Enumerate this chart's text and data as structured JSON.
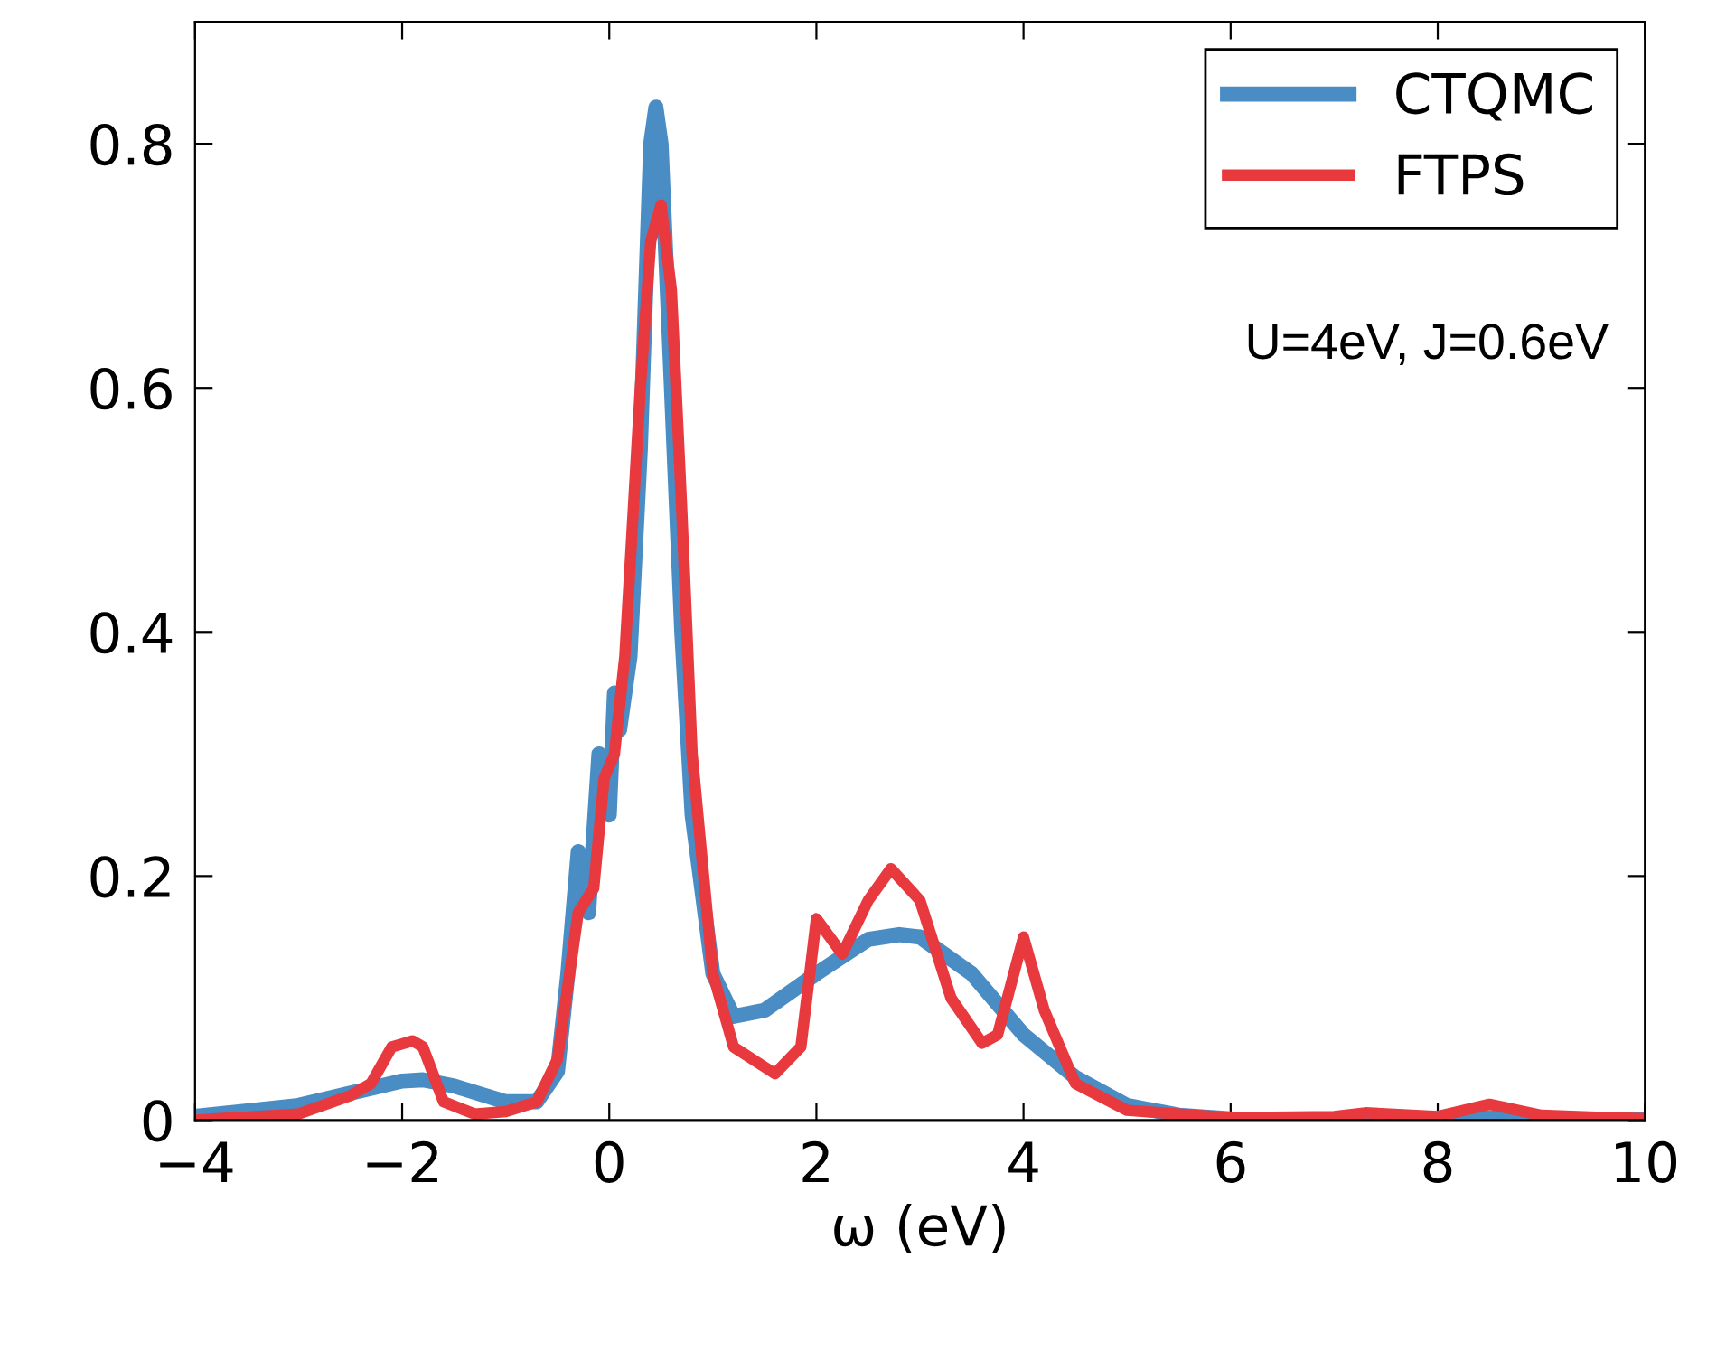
{
  "chart_data": {
    "type": "line",
    "xlabel": "ω (eV)",
    "xlim": [
      -4,
      10
    ],
    "xticks": [
      {
        "value": -4,
        "label": "−4"
      },
      {
        "value": -2,
        "label": "−2"
      },
      0,
      2,
      4,
      6,
      8,
      10
    ],
    "ylim": [
      0,
      0.9
    ],
    "yticks": [
      0,
      0.2,
      0.4,
      0.6,
      0.8
    ],
    "grid": false,
    "legend": "top right",
    "marker": "none",
    "line_style": "solid",
    "annotations": [
      "U=4eV, J=0.6eV"
    ],
    "series": [
      {
        "name": "CTQMC",
        "color": "#4a8cc4",
        "x": [
          -4,
          -3,
          -2.5,
          -2,
          -1.8,
          -1.5,
          -1,
          -0.7,
          -0.5,
          -0.4,
          -0.3,
          -0.2,
          -0.1,
          0,
          0.05,
          0.1,
          0.2,
          0.3,
          0.4,
          0.45,
          0.5,
          0.6,
          0.7,
          0.8,
          1.0,
          1.2,
          1.5,
          2,
          2.5,
          2.8,
          3,
          3.5,
          4,
          4.5,
          5,
          5.5,
          6,
          7,
          8,
          8.5,
          10
        ],
        "values": [
          0.003,
          0.012,
          0.022,
          0.032,
          0.033,
          0.028,
          0.015,
          0.015,
          0.04,
          0.12,
          0.22,
          0.17,
          0.3,
          0.25,
          0.35,
          0.32,
          0.38,
          0.55,
          0.8,
          0.83,
          0.8,
          0.6,
          0.4,
          0.25,
          0.12,
          0.085,
          0.09,
          0.12,
          0.148,
          0.152,
          0.15,
          0.12,
          0.07,
          0.035,
          0.012,
          0.004,
          0.001,
          0,
          0,
          0.002,
          0
        ]
      },
      {
        "name": "FTPS",
        "color": "#e8393f",
        "x": [
          -4,
          -3,
          -2.5,
          -2.3,
          -2.1,
          -1.9,
          -1.8,
          -1.6,
          -1.3,
          -1,
          -0.7,
          -0.5,
          -0.3,
          -0.15,
          -0.05,
          0.05,
          0.15,
          0.3,
          0.4,
          0.5,
          0.6,
          0.7,
          0.8,
          1.0,
          1.2,
          1.6,
          1.85,
          2.0,
          2.25,
          2.5,
          2.72,
          3.0,
          3.3,
          3.6,
          3.75,
          4.0,
          4.2,
          4.5,
          5,
          6,
          7,
          7.3,
          8,
          8.5,
          9,
          10
        ],
        "values": [
          0,
          0.005,
          0.02,
          0.03,
          0.06,
          0.065,
          0.06,
          0.015,
          0.005,
          0.007,
          0.015,
          0.05,
          0.17,
          0.19,
          0.28,
          0.3,
          0.38,
          0.6,
          0.72,
          0.75,
          0.68,
          0.5,
          0.3,
          0.12,
          0.06,
          0.038,
          0.06,
          0.165,
          0.136,
          0.18,
          0.206,
          0.18,
          0.1,
          0.063,
          0.07,
          0.15,
          0.09,
          0.03,
          0.008,
          0.002,
          0.003,
          0.006,
          0.003,
          0.013,
          0.004,
          0.001
        ]
      }
    ]
  }
}
